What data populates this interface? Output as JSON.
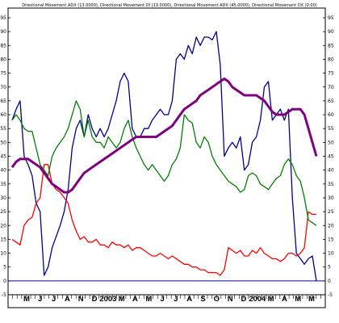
{
  "chart_data": {
    "type": "line",
    "title": "Directional Movement ADX (13.0000), Directional Movement DI (13.0000), Directional Movement ADX (45.0000), Directional Movement DX (0.00)",
    "ylim": [
      -5,
      95
    ],
    "yticks": [
      -5,
      0,
      5,
      10,
      15,
      20,
      25,
      30,
      35,
      40,
      45,
      50,
      55,
      60,
      65,
      70,
      75,
      80,
      85,
      90,
      95
    ],
    "xtick_labels": [
      "M",
      "J",
      "J",
      "A",
      "N",
      "D",
      "2003",
      "M",
      "A",
      "M",
      "J",
      "J",
      "A",
      "S",
      "O",
      "N",
      "D",
      "2004",
      "M",
      "A",
      "M",
      "M"
    ],
    "zero_line": 0,
    "grid": false,
    "colors": {
      "navy_series": "#00008b",
      "red_series": "#ff0000",
      "green_series": "#008000",
      "purple_series": "#800080",
      "zero_line": "#0000cd"
    },
    "series": [
      {
        "color": "#00008b",
        "x": [
          0,
          1,
          2,
          3,
          4,
          5,
          6,
          7,
          8,
          9,
          10,
          11,
          12,
          13,
          14,
          15,
          16,
          17,
          18,
          19,
          20,
          21,
          22,
          23,
          24,
          25,
          26,
          27,
          28,
          29,
          30,
          31,
          32,
          33,
          34,
          35,
          36,
          37,
          38,
          39,
          40,
          41,
          42,
          43,
          44,
          45,
          46,
          47,
          48,
          49,
          50,
          51,
          52,
          53,
          54,
          55,
          56,
          57,
          58,
          59,
          60,
          61,
          62,
          63,
          64,
          65,
          66,
          67,
          68,
          69,
          70,
          71,
          72,
          73,
          74,
          75,
          76
        ],
        "values": [
          58,
          62,
          65,
          45,
          42,
          38,
          28,
          25,
          2,
          5,
          12,
          16,
          20,
          25,
          33,
          48,
          55,
          58,
          52,
          60,
          55,
          52,
          55,
          52,
          55,
          60,
          65,
          72,
          75,
          72,
          55,
          52,
          52,
          55,
          55,
          58,
          60,
          62,
          60,
          60,
          65,
          80,
          82,
          80,
          85,
          82,
          88,
          85,
          88,
          88,
          87,
          90,
          78,
          45,
          48,
          50,
          48,
          52,
          40,
          42,
          50,
          52,
          58,
          70,
          72,
          58,
          60,
          62,
          58,
          62,
          30,
          10,
          8,
          6,
          8,
          9,
          0
        ]
      },
      {
        "color": "#ff0000",
        "x": [
          0,
          1,
          2,
          3,
          4,
          5,
          6,
          7,
          8,
          9,
          10,
          11,
          12,
          13,
          14,
          15,
          16,
          17,
          18,
          19,
          20,
          21,
          22,
          23,
          24,
          25,
          26,
          27,
          28,
          29,
          30,
          31,
          32,
          33,
          34,
          35,
          36,
          37,
          38,
          39,
          40,
          41,
          42,
          43,
          44,
          45,
          46,
          47,
          48,
          49,
          50,
          51,
          52,
          53,
          54,
          55,
          56,
          57,
          58,
          59,
          60,
          61,
          62,
          63,
          64,
          65,
          66,
          67,
          68,
          69,
          70,
          71,
          72,
          73,
          74,
          75,
          76
        ],
        "values": [
          15,
          14,
          13,
          20,
          22,
          23,
          28,
          30,
          42,
          42,
          35,
          33,
          32,
          30,
          28,
          22,
          18,
          15,
          16,
          14,
          14,
          15,
          13,
          13,
          12,
          14,
          13,
          13,
          12,
          13,
          11,
          12,
          12,
          11,
          10,
          9,
          9,
          10,
          9,
          8,
          9,
          8,
          7,
          6,
          6,
          5,
          5,
          4,
          4,
          3,
          3,
          3,
          2,
          4,
          12,
          11,
          10,
          11,
          9,
          9,
          11,
          10,
          12,
          10,
          9,
          8,
          8,
          7,
          8,
          10,
          10,
          9,
          10,
          12,
          25,
          24,
          24
        ]
      },
      {
        "color": "#008000",
        "x": [
          0,
          1,
          2,
          3,
          4,
          5,
          6,
          7,
          8,
          9,
          10,
          11,
          12,
          13,
          14,
          15,
          16,
          17,
          18,
          19,
          20,
          21,
          22,
          23,
          24,
          25,
          26,
          27,
          28,
          29,
          30,
          31,
          32,
          33,
          34,
          35,
          36,
          37,
          38,
          39,
          40,
          41,
          42,
          43,
          44,
          45,
          46,
          47,
          48,
          49,
          50,
          51,
          52,
          53,
          54,
          55,
          56,
          57,
          58,
          59,
          60,
          61,
          62,
          63,
          64,
          65,
          66,
          67,
          68,
          69,
          70,
          71,
          72,
          73,
          74,
          75,
          76
        ],
        "values": [
          58,
          60,
          58,
          55,
          54,
          54,
          48,
          42,
          40,
          38,
          45,
          48,
          50,
          52,
          55,
          60,
          65,
          62,
          52,
          58,
          52,
          50,
          50,
          48,
          52,
          50,
          48,
          50,
          55,
          58,
          52,
          48,
          45,
          42,
          40,
          42,
          40,
          38,
          36,
          38,
          42,
          44,
          48,
          60,
          58,
          57,
          50,
          48,
          52,
          50,
          45,
          42,
          40,
          38,
          36,
          35,
          34,
          32,
          33,
          38,
          39,
          38,
          35,
          34,
          33,
          35,
          37,
          38,
          42,
          44,
          42,
          38,
          36,
          30,
          22,
          21,
          20
        ]
      },
      {
        "color": "#800080",
        "x": [
          0,
          1,
          2,
          3,
          4,
          5,
          6,
          7,
          8,
          9,
          10,
          11,
          12,
          13,
          14,
          15,
          16,
          17,
          18,
          19,
          20,
          21,
          22,
          23,
          24,
          25,
          26,
          27,
          28,
          29,
          30,
          31,
          32,
          33,
          34,
          35,
          36,
          37,
          38,
          39,
          40,
          41,
          42,
          43,
          44,
          45,
          46,
          47,
          48,
          49,
          50,
          51,
          52,
          53,
          54,
          55,
          56,
          57,
          58,
          59,
          60,
          61,
          62,
          63,
          64,
          65,
          66,
          67,
          68,
          69,
          70,
          71,
          72,
          73,
          74,
          75,
          76
        ],
        "values": [
          41,
          43,
          44,
          44,
          44,
          43,
          42,
          41,
          39,
          37,
          35,
          34,
          33,
          32,
          32,
          33,
          35,
          37,
          39,
          40,
          41,
          42,
          43,
          44,
          45,
          46,
          47,
          48,
          49,
          50,
          51,
          52,
          52,
          52,
          52,
          52,
          52,
          53,
          54,
          55,
          56,
          58,
          60,
          62,
          63,
          64,
          65,
          67,
          68,
          69,
          70,
          71,
          72,
          73,
          72,
          70,
          69,
          68,
          67,
          67,
          67,
          67,
          66,
          65,
          63,
          61,
          60,
          60,
          60,
          61,
          62,
          62,
          62,
          60,
          55,
          50,
          45
        ]
      }
    ]
  }
}
